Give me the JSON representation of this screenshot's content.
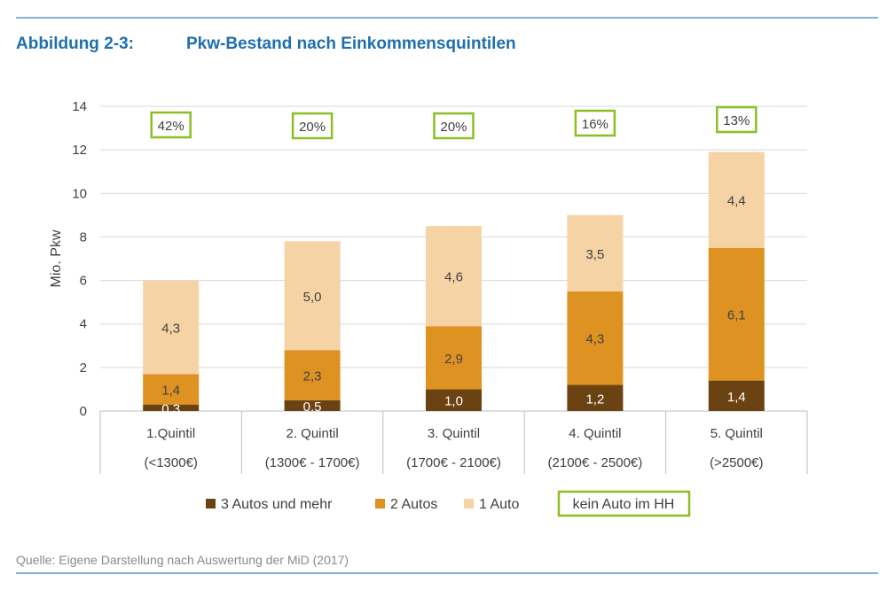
{
  "header": {
    "figure_label": "Abbildung 2-3:",
    "title": "Pkw-Bestand nach Einkommensquintilen"
  },
  "footer": {
    "source": "Quelle: Eigene Darstellung nach Auswertung der MiD (2017)"
  },
  "colors": {
    "three_plus": "#6b4313",
    "two": "#de9222",
    "one": "#f5d3a4",
    "highlight_box": "#8cbf26",
    "rule": "#7fb2dc",
    "title": "#1f6fae"
  },
  "chart_data": {
    "type": "bar",
    "stacked": true,
    "ylabel": "Mio. Pkw",
    "ylim": [
      0,
      14
    ],
    "yticks": [
      0,
      2,
      4,
      6,
      8,
      10,
      12,
      14
    ],
    "grid": true,
    "categories": [
      "1.Quintil",
      "2. Quintil",
      "3. Quintil",
      "4. Quintil",
      "5. Quintil"
    ],
    "category_sublabels": [
      "(<1300€)",
      "(1300€ - 1700€)",
      "(1700€ - 2100€)",
      "(2100€ - 2500€)",
      "(>2500€)"
    ],
    "series": [
      {
        "name": "3 Autos und mehr",
        "values": [
          0.3,
          0.5,
          1.0,
          1.2,
          1.4
        ],
        "labels": [
          "0,3",
          "0,5",
          "1,0",
          "1,2",
          "1,4"
        ]
      },
      {
        "name": "2 Autos",
        "values": [
          1.4,
          2.3,
          2.9,
          4.3,
          6.1
        ],
        "labels": [
          "1,4",
          "2,3",
          "2,9",
          "4,3",
          "6,1"
        ]
      },
      {
        "name": "1 Auto",
        "values": [
          4.3,
          5.0,
          4.6,
          3.5,
          4.4
        ],
        "labels": [
          "4,3",
          "5,0",
          "4,6",
          "3,5",
          "4,4"
        ]
      }
    ],
    "kein_auto_label": "kein Auto im HH",
    "kein_auto_percent": [
      "42%",
      "20%",
      "20%",
      "16%",
      "13%"
    ],
    "legend_position": "bottom"
  }
}
